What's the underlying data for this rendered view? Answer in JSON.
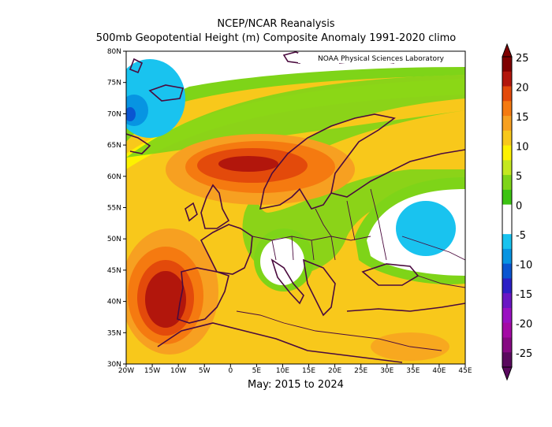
{
  "title_line1": "NCEP/NCAR Reanalysis",
  "title_line2": "500mb Geopotential Height (m) Composite Anomaly 1991-2020 climo",
  "subtitle": "May: 2015 to 2024",
  "credit": "NOAA Physical Sciences Laboratory",
  "lat_labels": [
    "80N",
    "75N",
    "70N",
    "65N",
    "60N",
    "55N",
    "50N",
    "45N",
    "40N",
    "35N",
    "30N"
  ],
  "lon_labels": [
    "20W",
    "15W",
    "10W",
    "5W",
    "0",
    "5E",
    "10E",
    "15E",
    "20E",
    "25E",
    "30E",
    "35E",
    "40E",
    "45E"
  ],
  "colorbar": {
    "labels": [
      "25",
      "20",
      "15",
      "10",
      "5",
      "0",
      "-5",
      "-10",
      "-15",
      "-20",
      "-25"
    ],
    "colors": [
      "#7f0000",
      "#b2160c",
      "#e34a0b",
      "#f57a10",
      "#f7a021",
      "#f8c81b",
      "#fdf200",
      "#c4e820",
      "#7ed418",
      "#3cc312",
      "#ffffff",
      "#ffffff",
      "#19c3ef",
      "#0794e2",
      "#0a55d1",
      "#2c1fc6",
      "#6a16c4",
      "#9a10c2",
      "#a40aa5",
      "#860a82",
      "#5a0a5e"
    ]
  },
  "chart_data": {
    "type": "heatmap",
    "variable": "500mb Geopotential Height (m) Composite Anomaly",
    "period": "May: 2015 to 2024",
    "lon_range": [
      -20,
      45
    ],
    "lat_range": [
      30,
      80
    ],
    "color_range": [
      -25,
      25
    ],
    "contour_interval": 2.5,
    "features": [
      {
        "center": [
          -12,
          41
        ],
        "anomaly": 25
      },
      {
        "center": [
          8,
          61
        ],
        "anomaly": 22
      },
      {
        "center": [
          40,
          52
        ],
        "anomaly": -5
      },
      {
        "center": [
          -19,
          71
        ],
        "anomaly": -10
      },
      {
        "center": [
          10,
          46
        ],
        "anomaly": 0
      }
    ]
  }
}
